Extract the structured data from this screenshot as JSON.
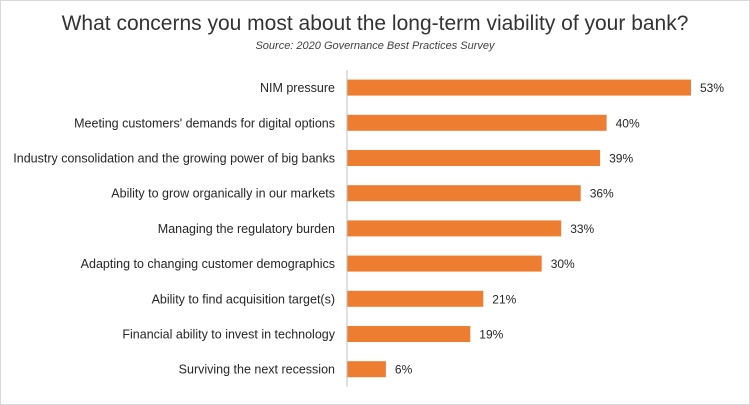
{
  "title": "What concerns you most about the long-term viability of your bank?",
  "subtitle": "Source: 2020 Governance Best Practices Survey",
  "chart_data": {
    "type": "bar",
    "orientation": "horizontal",
    "title": "What concerns you most about the long-term viability of your bank?",
    "subtitle": "Source: 2020 Governance Best Practices Survey",
    "categories": [
      "NIM pressure",
      "Meeting customers' demands for digital options",
      "Industry consolidation and the growing power of big banks",
      "Ability to grow organically in our markets",
      "Managing the regulatory burden",
      "Adapting to changing customer demographics",
      "Ability to find acquisition target(s)",
      "Financial ability to invest in technology",
      "Surviving the next recession"
    ],
    "values": [
      53,
      40,
      39,
      36,
      33,
      30,
      21,
      19,
      6
    ],
    "value_labels": [
      "53%",
      "40%",
      "39%",
      "36%",
      "33%",
      "30%",
      "21%",
      "19%",
      "6%"
    ],
    "unit": "%",
    "bar_color": "#ed7d31",
    "axis_color": "#bfbfbf",
    "xlim": [
      0,
      55
    ],
    "grid": false,
    "legend": "none"
  }
}
